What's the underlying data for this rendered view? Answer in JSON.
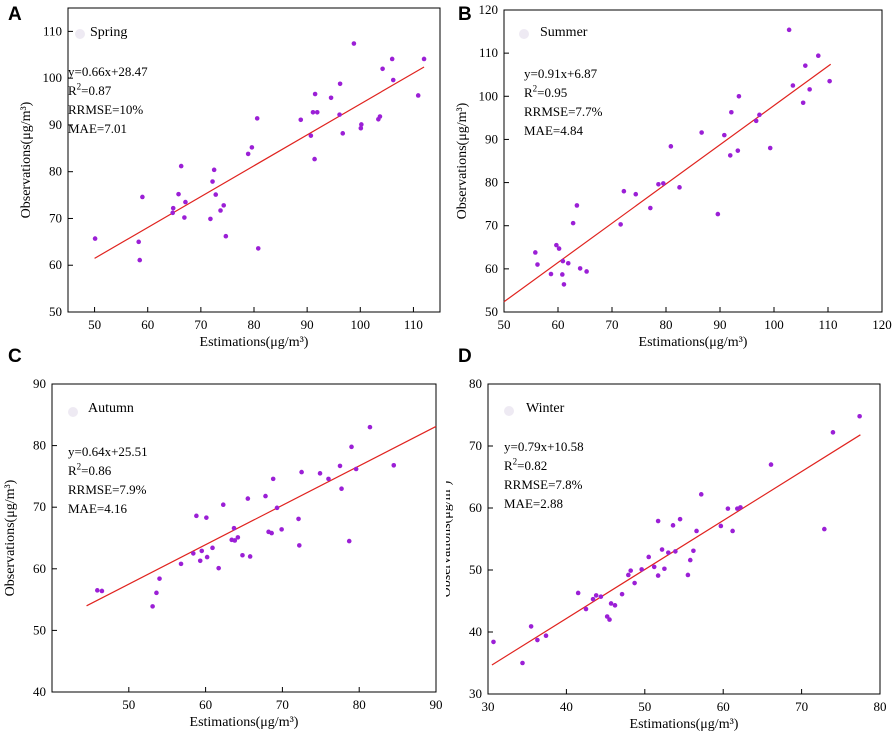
{
  "accent": {
    "point": "#9b1fd6",
    "fit_line": "#e0231f",
    "axis": "#000000"
  },
  "chart_data": [
    {
      "panel": "A",
      "type": "scatter",
      "title": "Spring",
      "xlabel": "Estimations(μg/m³)",
      "ylabel": "Observations(μg/m³)",
      "xlim": [
        45,
        115
      ],
      "ylim": [
        50,
        115
      ],
      "xticks": [
        50,
        60,
        70,
        80,
        90,
        100,
        110
      ],
      "yticks": [
        50,
        60,
        70,
        80,
        90,
        100,
        110
      ],
      "fit": {
        "slope": 0.66,
        "intercept": 28.47,
        "x_range": [
          50,
          112
        ]
      },
      "stats": {
        "equation": "y=0.66x+28.47",
        "r2_prefix": "R",
        "r2_value": "=0.87",
        "rrmse": "RRMSE=10%",
        "mae": "MAE=7.01"
      },
      "points": [
        [
          50.1,
          65.7
        ],
        [
          58.3,
          65.0
        ],
        [
          58.5,
          61.1
        ],
        [
          59.0,
          74.6
        ],
        [
          64.7,
          71.2
        ],
        [
          64.8,
          72.2
        ],
        [
          65.8,
          75.2
        ],
        [
          66.3,
          81.2
        ],
        [
          66.9,
          70.2
        ],
        [
          67.1,
          73.5
        ],
        [
          71.8,
          69.9
        ],
        [
          72.2,
          77.9
        ],
        [
          72.5,
          80.4
        ],
        [
          72.8,
          75.1
        ],
        [
          73.7,
          71.7
        ],
        [
          74.3,
          72.8
        ],
        [
          74.7,
          66.2
        ],
        [
          78.9,
          83.8
        ],
        [
          79.6,
          85.2
        ],
        [
          80.6,
          91.4
        ],
        [
          80.8,
          63.6
        ],
        [
          88.8,
          91.1
        ],
        [
          90.7,
          87.7
        ],
        [
          91.1,
          92.7
        ],
        [
          91.4,
          82.7
        ],
        [
          91.5,
          96.6
        ],
        [
          91.9,
          92.7
        ],
        [
          94.5,
          95.8
        ],
        [
          96.1,
          92.2
        ],
        [
          96.2,
          98.8
        ],
        [
          96.7,
          88.2
        ],
        [
          98.8,
          107.4
        ],
        [
          100.1,
          89.3
        ],
        [
          100.2,
          90.1
        ],
        [
          103.4,
          91.2
        ],
        [
          103.7,
          91.8
        ],
        [
          104.2,
          102.0
        ],
        [
          106.0,
          104.1
        ],
        [
          106.2,
          99.6
        ],
        [
          110.9,
          96.3
        ],
        [
          112.0,
          104.1
        ]
      ]
    },
    {
      "panel": "B",
      "type": "scatter",
      "title": "Summer",
      "xlabel": "Estimations(μg/m³)",
      "ylabel": "Observations(μg/m³)",
      "xlim": [
        50,
        120
      ],
      "ylim": [
        50,
        120
      ],
      "xticks": [
        50,
        60,
        70,
        80,
        90,
        100,
        110,
        120
      ],
      "yticks": [
        50,
        60,
        70,
        80,
        90,
        100,
        110,
        120
      ],
      "fit": {
        "slope": 0.91,
        "intercept": 6.87,
        "x_range": [
          50,
          110.5
        ]
      },
      "stats": {
        "equation": "y=0.91x+6.87",
        "r2_prefix": "R",
        "r2_value": "=0.95",
        "rrmse": "RRMSE=7.7%",
        "mae": "MAE=4.84"
      },
      "points": [
        [
          55.8,
          63.8
        ],
        [
          56.2,
          61.0
        ],
        [
          58.7,
          58.8
        ],
        [
          59.7,
          65.5
        ],
        [
          60.2,
          64.7
        ],
        [
          60.8,
          58.7
        ],
        [
          60.9,
          61.8
        ],
        [
          61.1,
          56.4
        ],
        [
          61.9,
          61.3
        ],
        [
          62.8,
          70.6
        ],
        [
          63.5,
          74.7
        ],
        [
          64.1,
          60.1
        ],
        [
          65.3,
          59.4
        ],
        [
          71.6,
          70.3
        ],
        [
          72.2,
          78.0
        ],
        [
          74.4,
          77.3
        ],
        [
          77.1,
          74.1
        ],
        [
          78.6,
          79.6
        ],
        [
          79.5,
          79.8
        ],
        [
          80.9,
          88.4
        ],
        [
          82.5,
          78.9
        ],
        [
          86.6,
          91.6
        ],
        [
          89.6,
          72.7
        ],
        [
          90.8,
          91.0
        ],
        [
          91.9,
          86.3
        ],
        [
          92.1,
          96.3
        ],
        [
          93.3,
          87.4
        ],
        [
          93.5,
          100.0
        ],
        [
          96.7,
          94.3
        ],
        [
          97.3,
          95.7
        ],
        [
          99.3,
          88.0
        ],
        [
          102.8,
          115.4
        ],
        [
          103.5,
          102.5
        ],
        [
          105.4,
          98.5
        ],
        [
          105.8,
          107.1
        ],
        [
          106.6,
          101.6
        ],
        [
          108.2,
          109.4
        ],
        [
          110.3,
          103.5
        ]
      ]
    },
    {
      "panel": "C",
      "type": "scatter",
      "title": "Autumn",
      "xlabel": "Estimations(μg/m³)",
      "ylabel": "Observations(μg/m³)",
      "xlim": [
        40,
        90
      ],
      "ylim": [
        40,
        90
      ],
      "xticks": [
        50,
        60,
        70,
        80,
        90
      ],
      "yticks": [
        40,
        50,
        60,
        70,
        80,
        90
      ],
      "fit": {
        "slope": 0.64,
        "intercept": 25.51,
        "x_range": [
          44.5,
          90
        ]
      },
      "stats": {
        "equation": "y=0.64x+25.51",
        "r2_prefix": "R",
        "r2_value": "=0.86",
        "rrmse": "RRMSE=7.9%",
        "mae": "MAE=4.16"
      },
      "points": [
        [
          45.9,
          56.5
        ],
        [
          46.5,
          56.4
        ],
        [
          53.1,
          53.9
        ],
        [
          53.6,
          56.1
        ],
        [
          54.0,
          58.4
        ],
        [
          56.8,
          60.8
        ],
        [
          58.4,
          62.5
        ],
        [
          58.8,
          68.6
        ],
        [
          59.3,
          61.3
        ],
        [
          59.5,
          62.9
        ],
        [
          60.1,
          68.3
        ],
        [
          60.2,
          61.9
        ],
        [
          60.9,
          63.4
        ],
        [
          61.7,
          60.1
        ],
        [
          62.3,
          70.4
        ],
        [
          63.4,
          64.7
        ],
        [
          63.7,
          66.6
        ],
        [
          63.8,
          64.6
        ],
        [
          64.2,
          65.1
        ],
        [
          64.8,
          62.2
        ],
        [
          65.5,
          71.4
        ],
        [
          65.8,
          62.0
        ],
        [
          67.8,
          71.8
        ],
        [
          68.2,
          66.0
        ],
        [
          68.6,
          65.8
        ],
        [
          68.8,
          74.6
        ],
        [
          69.3,
          69.9
        ],
        [
          69.9,
          66.4
        ],
        [
          72.1,
          68.1
        ],
        [
          72.2,
          63.8
        ],
        [
          72.5,
          75.7
        ],
        [
          74.9,
          75.5
        ],
        [
          76.0,
          74.6
        ],
        [
          77.5,
          76.7
        ],
        [
          77.7,
          73.0
        ],
        [
          78.7,
          64.5
        ],
        [
          79.0,
          79.8
        ],
        [
          79.6,
          76.2
        ],
        [
          81.4,
          83.0
        ],
        [
          84.5,
          76.8
        ]
      ]
    },
    {
      "panel": "D",
      "type": "scatter",
      "title": "Winter",
      "xlabel": "Estimations(μg/m³)",
      "ylabel": "Observations(μg/m³)",
      "xlim": [
        30,
        80
      ],
      "ylim": [
        30,
        80
      ],
      "xticks": [
        30,
        40,
        50,
        60,
        70,
        80
      ],
      "yticks": [
        30,
        40,
        50,
        60,
        70,
        80
      ],
      "fit": {
        "slope": 0.79,
        "intercept": 10.58,
        "x_range": [
          30.5,
          77.5
        ]
      },
      "stats": {
        "equation": "y=0.79x+10.58",
        "r2_prefix": "R",
        "r2_value": "=0.82",
        "rrmse": "RRMSE=7.8%",
        "mae": "MAE=2.88"
      },
      "points": [
        [
          30.7,
          38.4
        ],
        [
          34.4,
          35.0
        ],
        [
          35.5,
          40.9
        ],
        [
          36.3,
          38.7
        ],
        [
          37.4,
          39.4
        ],
        [
          41.5,
          46.3
        ],
        [
          42.5,
          43.7
        ],
        [
          43.4,
          45.3
        ],
        [
          43.8,
          45.9
        ],
        [
          44.4,
          45.7
        ],
        [
          45.2,
          42.5
        ],
        [
          45.5,
          42.0
        ],
        [
          45.7,
          44.6
        ],
        [
          46.2,
          44.3
        ],
        [
          47.1,
          46.1
        ],
        [
          47.9,
          49.2
        ],
        [
          48.2,
          49.9
        ],
        [
          48.7,
          47.9
        ],
        [
          49.6,
          50.1
        ],
        [
          50.5,
          52.1
        ],
        [
          51.2,
          50.5
        ],
        [
          51.7,
          49.1
        ],
        [
          51.7,
          57.9
        ],
        [
          52.2,
          53.3
        ],
        [
          52.5,
          50.2
        ],
        [
          53.0,
          52.8
        ],
        [
          53.6,
          57.2
        ],
        [
          53.9,
          53.0
        ],
        [
          54.5,
          58.2
        ],
        [
          55.5,
          49.2
        ],
        [
          55.8,
          51.6
        ],
        [
          56.2,
          53.1
        ],
        [
          56.6,
          56.3
        ],
        [
          57.2,
          62.2
        ],
        [
          59.7,
          57.1
        ],
        [
          60.6,
          59.9
        ],
        [
          61.2,
          56.3
        ],
        [
          61.8,
          59.9
        ],
        [
          62.2,
          60.1
        ],
        [
          66.1,
          67.0
        ],
        [
          72.9,
          56.6
        ],
        [
          74.0,
          72.2
        ],
        [
          77.4,
          74.8
        ]
      ]
    }
  ]
}
